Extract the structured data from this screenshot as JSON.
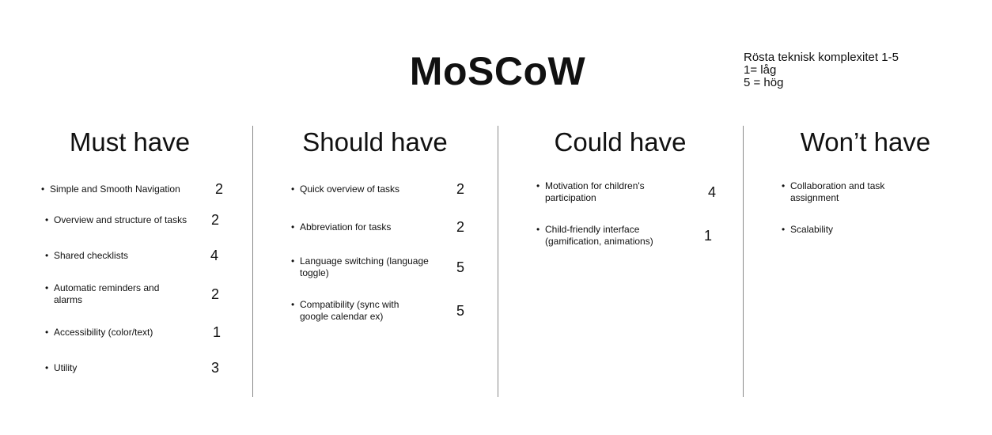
{
  "title": "MoSCoW",
  "note": [
    "Rösta teknisk komplexitet 1-5",
    "1= låg",
    "5 = hög"
  ],
  "bullet": "•",
  "columns": [
    {
      "heading": "Must have",
      "items": [
        {
          "text": "Simple and Smooth Navigation",
          "score": "2"
        },
        {
          "text": "Overview and structure of tasks",
          "score": "2"
        },
        {
          "text": "Shared checklists",
          "score": "4"
        },
        {
          "text": "Automatic reminders and alarms",
          "score": "2"
        },
        {
          "text": "Accessibility (color/text)",
          "score": "1"
        },
        {
          "text": "Utility",
          "score": "3"
        }
      ]
    },
    {
      "heading": "Should have",
      "items": [
        {
          "text": "Quick overview of tasks",
          "score": "2"
        },
        {
          "text": "Abbreviation for tasks",
          "score": "2"
        },
        {
          "text": "Language switching (language toggle)",
          "score": "5"
        },
        {
          "text": "Compatibility (sync with google calendar ex)",
          "score": "5"
        }
      ]
    },
    {
      "heading": "Could have",
      "items": [
        {
          "text": "Motivation for children's participation",
          "score": "4"
        },
        {
          "text": "Child-friendly interface (gamification, animations)",
          "score": "1"
        }
      ]
    },
    {
      "heading": "Won’t have",
      "items": [
        {
          "text": "Collaboration and task assignment",
          "score": ""
        },
        {
          "text": "Scalability",
          "score": ""
        }
      ]
    }
  ]
}
